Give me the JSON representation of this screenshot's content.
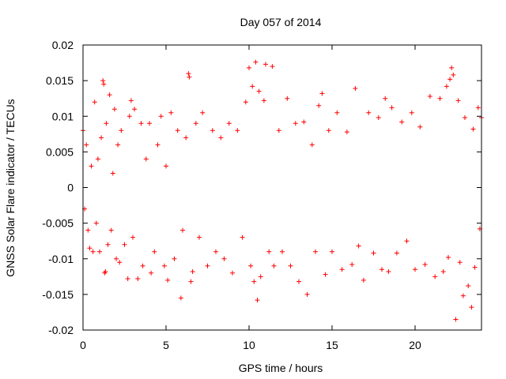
{
  "chart_data": {
    "type": "scatter",
    "title": "Day 057 of 2014",
    "xlabel": "GPS time / hours",
    "ylabel": "GNSS Solar Flare indicator / TECUs",
    "xlim": [
      0,
      24
    ],
    "ylim": [
      -0.02,
      0.02
    ],
    "x_ticks": [
      0,
      5,
      10,
      15,
      20
    ],
    "x_tick_labels": [
      "0",
      "5",
      "10",
      "15",
      "20"
    ],
    "y_ticks": [
      -0.02,
      -0.015,
      -0.01,
      -0.005,
      0,
      0.005,
      0.01,
      0.015,
      0.02
    ],
    "y_tick_labels": [
      "-0.02",
      "-0.015",
      "-0.01",
      "-0.005",
      "0",
      "0.005",
      "0.01",
      "0.015",
      "0.02"
    ],
    "grid": false,
    "marker": "+",
    "series": [
      {
        "name": "solar flare indicator",
        "color": "#ff0000",
        "points": [
          [
            0.0,
            0.008
          ],
          [
            0.1,
            -0.003
          ],
          [
            0.2,
            0.006
          ],
          [
            0.3,
            -0.006
          ],
          [
            0.4,
            -0.0085
          ],
          [
            0.5,
            0.003
          ],
          [
            0.6,
            -0.009
          ],
          [
            0.7,
            0.012
          ],
          [
            0.8,
            -0.005
          ],
          [
            0.9,
            0.004
          ],
          [
            1.0,
            -0.009
          ],
          [
            1.1,
            0.007
          ],
          [
            1.2,
            0.015
          ],
          [
            1.25,
            0.0145
          ],
          [
            1.3,
            -0.012
          ],
          [
            1.35,
            -0.0118
          ],
          [
            1.4,
            0.009
          ],
          [
            1.5,
            -0.008
          ],
          [
            1.6,
            0.013
          ],
          [
            1.7,
            -0.006
          ],
          [
            1.8,
            0.002
          ],
          [
            1.9,
            0.011
          ],
          [
            2.0,
            -0.01
          ],
          [
            2.1,
            0.006
          ],
          [
            2.2,
            -0.0105
          ],
          [
            2.3,
            0.008
          ],
          [
            2.5,
            -0.008
          ],
          [
            2.7,
            -0.0128
          ],
          [
            2.8,
            0.01
          ],
          [
            2.9,
            0.0122
          ],
          [
            3.0,
            -0.007
          ],
          [
            3.1,
            0.011
          ],
          [
            3.3,
            -0.0128
          ],
          [
            3.5,
            0.009
          ],
          [
            3.6,
            -0.011
          ],
          [
            3.8,
            0.004
          ],
          [
            4.0,
            0.009
          ],
          [
            4.1,
            -0.012
          ],
          [
            4.3,
            -0.009
          ],
          [
            4.5,
            0.006
          ],
          [
            4.7,
            0.01
          ],
          [
            4.9,
            -0.011
          ],
          [
            5.0,
            0.003
          ],
          [
            5.1,
            -0.013
          ],
          [
            5.3,
            0.0105
          ],
          [
            5.5,
            -0.01
          ],
          [
            5.7,
            0.008
          ],
          [
            5.9,
            -0.0155
          ],
          [
            6.0,
            -0.006
          ],
          [
            6.2,
            0.007
          ],
          [
            6.35,
            0.016
          ],
          [
            6.4,
            0.0155
          ],
          [
            6.5,
            -0.0132
          ],
          [
            6.6,
            -0.0118
          ],
          [
            6.8,
            0.009
          ],
          [
            7.0,
            -0.007
          ],
          [
            7.2,
            0.0105
          ],
          [
            7.5,
            -0.011
          ],
          [
            7.8,
            0.008
          ],
          [
            8.0,
            -0.009
          ],
          [
            8.3,
            0.007
          ],
          [
            8.5,
            -0.01
          ],
          [
            8.8,
            0.009
          ],
          [
            9.0,
            -0.012
          ],
          [
            9.3,
            0.008
          ],
          [
            9.6,
            -0.007
          ],
          [
            9.8,
            0.012
          ],
          [
            10.0,
            0.0168
          ],
          [
            10.1,
            -0.011
          ],
          [
            10.2,
            0.0142
          ],
          [
            10.3,
            -0.0132
          ],
          [
            10.4,
            0.0176
          ],
          [
            10.5,
            -0.0158
          ],
          [
            10.6,
            0.0135
          ],
          [
            10.7,
            -0.0125
          ],
          [
            10.9,
            0.0122
          ],
          [
            11.0,
            0.0173
          ],
          [
            11.2,
            -0.009
          ],
          [
            11.4,
            0.017
          ],
          [
            11.5,
            -0.011
          ],
          [
            11.8,
            0.008
          ],
          [
            12.0,
            -0.009
          ],
          [
            12.3,
            0.0125
          ],
          [
            12.5,
            -0.011
          ],
          [
            12.8,
            0.009
          ],
          [
            13.0,
            -0.0132
          ],
          [
            13.3,
            0.0092
          ],
          [
            13.5,
            -0.015
          ],
          [
            13.8,
            0.006
          ],
          [
            14.0,
            -0.009
          ],
          [
            14.2,
            0.0115
          ],
          [
            14.4,
            0.0132
          ],
          [
            14.6,
            -0.0122
          ],
          [
            14.8,
            0.008
          ],
          [
            15.0,
            -0.009
          ],
          [
            15.3,
            0.0105
          ],
          [
            15.6,
            -0.0115
          ],
          [
            15.9,
            0.0078
          ],
          [
            16.2,
            -0.0108
          ],
          [
            16.4,
            0.0139
          ],
          [
            16.6,
            -0.0082
          ],
          [
            16.9,
            -0.013
          ],
          [
            17.2,
            0.0105
          ],
          [
            17.5,
            -0.0092
          ],
          [
            17.8,
            0.0098
          ],
          [
            18.0,
            -0.0115
          ],
          [
            18.2,
            0.0125
          ],
          [
            18.4,
            -0.0118
          ],
          [
            18.6,
            0.0112
          ],
          [
            18.9,
            -0.0092
          ],
          [
            19.2,
            0.0092
          ],
          [
            19.5,
            -0.0075
          ],
          [
            19.8,
            0.0105
          ],
          [
            20.0,
            -0.0115
          ],
          [
            20.3,
            0.0085
          ],
          [
            20.6,
            -0.0108
          ],
          [
            20.9,
            0.0128
          ],
          [
            21.2,
            -0.0125
          ],
          [
            21.5,
            0.0125
          ],
          [
            21.7,
            -0.0118
          ],
          [
            21.9,
            0.0142
          ],
          [
            22.0,
            -0.0098
          ],
          [
            22.1,
            0.0152
          ],
          [
            22.2,
            0.0168
          ],
          [
            22.3,
            0.0158
          ],
          [
            22.45,
            -0.0185
          ],
          [
            22.6,
            0.0122
          ],
          [
            22.7,
            -0.0105
          ],
          [
            22.9,
            -0.0152
          ],
          [
            23.0,
            0.0098
          ],
          [
            23.2,
            -0.0138
          ],
          [
            23.4,
            -0.0168
          ],
          [
            23.5,
            0.0082
          ],
          [
            23.6,
            -0.0112
          ],
          [
            23.8,
            0.0112
          ],
          [
            23.9,
            -0.0058
          ],
          [
            24.0,
            0.0098
          ]
        ]
      }
    ]
  }
}
